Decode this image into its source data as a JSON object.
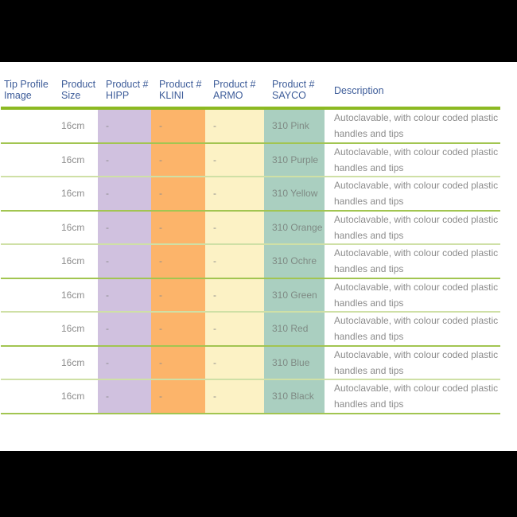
{
  "colors": {
    "letterbox": "#000000",
    "accent_line": "#8cb922",
    "separator_dark": "#a2c551",
    "separator_light": "#cfe0a6",
    "header_text": "#3d5c99",
    "body_text": "#8c8c8c",
    "hipp_bg": "#d0c1df",
    "klini_bg": "#fcb46a",
    "armo_bg": "#fcf2c5",
    "sayco_bg": "#aacfc0",
    "sayco_text": "#7f8a84"
  },
  "table": {
    "columns": [
      {
        "key": "tip",
        "label": "Tip Profile Image"
      },
      {
        "key": "size",
        "label": "Product Size"
      },
      {
        "key": "hipp",
        "label": "Product # HIPP",
        "bg": "#d0c1df"
      },
      {
        "key": "klini",
        "label": "Product # KLINI",
        "bg": "#fcb46a"
      },
      {
        "key": "armo",
        "label": "Product # ARMO",
        "bg": "#fcf2c5"
      },
      {
        "key": "sayco",
        "label": "Product # SAYCO",
        "bg": "#aacfc0",
        "text_color": "#7f8a84"
      },
      {
        "key": "description",
        "label": "Description"
      }
    ],
    "rows": [
      {
        "tip": "",
        "size": "16cm",
        "hipp": "-",
        "klini": "-",
        "armo": "-",
        "sayco": "310 Pink",
        "description_lines": [
          "Autoclavable, with colour coded plastic",
          "handles and tips"
        ]
      },
      {
        "tip": "",
        "size": "16cm",
        "hipp": "-",
        "klini": "-",
        "armo": "-",
        "sayco": "310 Purple",
        "description_lines": [
          "Autoclavable, with colour coded plastic",
          "handles and tips"
        ]
      },
      {
        "tip": "",
        "size": "16cm",
        "hipp": "-",
        "klini": "-",
        "armo": "-",
        "sayco": "310 Yellow",
        "description_lines": [
          "Autoclavable, with colour coded plastic",
          "handles and tips"
        ]
      },
      {
        "tip": "",
        "size": "16cm",
        "hipp": "-",
        "klini": "-",
        "armo": "-",
        "sayco": "310 Orange",
        "description_lines": [
          "Autoclavable, with colour coded plastic",
          "handles and tips"
        ]
      },
      {
        "tip": "",
        "size": "16cm",
        "hipp": "-",
        "klini": "-",
        "armo": "-",
        "sayco": "310 Ochre",
        "description_lines": [
          "Autoclavable, with colour coded plastic",
          "handles and tips"
        ]
      },
      {
        "tip": "",
        "size": "16cm",
        "hipp": "-",
        "klini": "-",
        "armo": "-",
        "sayco": "310 Green",
        "description_lines": [
          "Autoclavable, with colour coded plastic",
          "handles and tips"
        ]
      },
      {
        "tip": "",
        "size": "16cm",
        "hipp": "-",
        "klini": "-",
        "armo": "-",
        "sayco": "310 Red",
        "description_lines": [
          "Autoclavable, with colour coded plastic",
          "handles and tips"
        ]
      },
      {
        "tip": "",
        "size": "16cm",
        "hipp": "-",
        "klini": "-",
        "armo": "-",
        "sayco": "310 Blue",
        "description_lines": [
          "Autoclavable, with colour coded plastic",
          "handles and tips"
        ]
      },
      {
        "tip": "",
        "size": "16cm",
        "hipp": "-",
        "klini": "-",
        "armo": "-",
        "sayco": "310 Black",
        "description_lines": [
          "Autoclavable, with colour coded plastic",
          "handles and tips"
        ]
      }
    ]
  }
}
